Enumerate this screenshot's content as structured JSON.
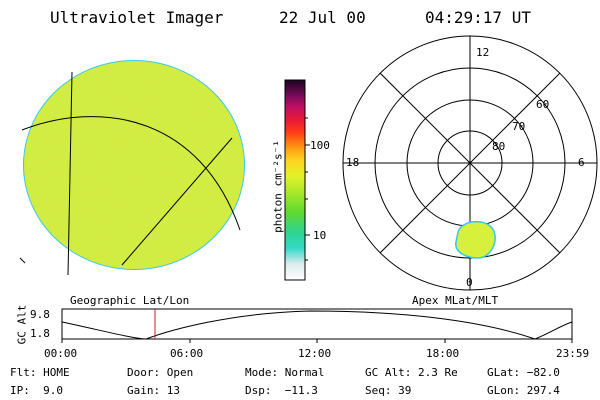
{
  "header": {
    "title": "Ultraviolet Imager",
    "date": "22 Jul 00",
    "time": "04:29:17 UT"
  },
  "colorbar": {
    "unit_label": "photon cm⁻²s⁻¹",
    "tick_labels": [
      "100",
      "10"
    ],
    "scale": "log"
  },
  "left_panel": {
    "label": "Geographic Lat/Lon",
    "fill_color": "#d6f03c",
    "edge_color": "#35c8ee"
  },
  "right_panel": {
    "label": "Apex MLat/MLT",
    "mlt_labels": [
      "12",
      "18",
      "6",
      "0"
    ],
    "lat_labels": [
      "60",
      "70",
      "80"
    ],
    "aurora_color": "#d6f03c"
  },
  "altitude_plot": {
    "ylabel": "GC Alt",
    "y_ticks": [
      "9.8",
      "1.8"
    ],
    "x_ticks": [
      "00:00",
      "06:00",
      "12:00",
      "18:00",
      "23:59"
    ],
    "cursor_color": "#cc2222"
  },
  "status": {
    "row1": [
      "Flt: HOME",
      "Door: Open",
      "Mode: Normal",
      "GC Alt: 2.3 Re",
      "GLat: −82.0"
    ],
    "row2": [
      "IP:  9.0",
      "Gain: 13",
      "Dsp:  −11.3",
      "Seq: 39",
      "GLon: 297.4"
    ]
  }
}
